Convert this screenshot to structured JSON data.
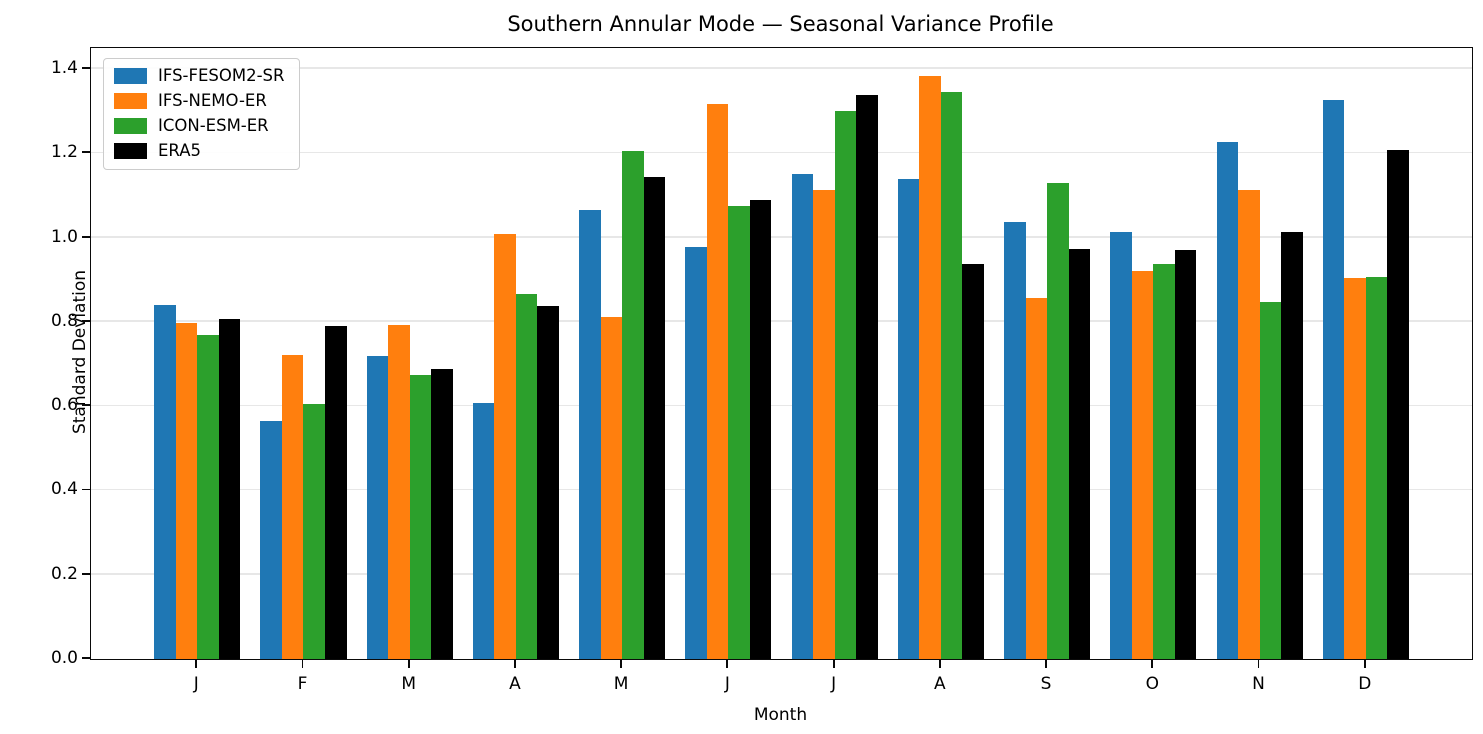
{
  "title": "Southern Annular Mode — Seasonal Variance Profile",
  "chart_data": {
    "type": "bar",
    "title": "Southern Annular Mode — Seasonal Variance Profile",
    "xlabel": "Month",
    "ylabel": "Standard Deviation",
    "categories": [
      "J",
      "F",
      "M",
      "A",
      "M",
      "J",
      "J",
      "A",
      "S",
      "O",
      "N",
      "D"
    ],
    "series": [
      {
        "name": "IFS-FESOM2-SR",
        "color": "#1f77b4",
        "values": [
          0.84,
          0.565,
          0.72,
          0.608,
          1.066,
          0.978,
          1.152,
          1.139,
          1.038,
          1.013,
          1.226,
          1.326
        ]
      },
      {
        "name": "IFS-NEMO-ER",
        "color": "#ff7f0e",
        "values": [
          0.797,
          0.721,
          0.793,
          1.008,
          0.811,
          1.317,
          1.112,
          1.383,
          0.857,
          0.921,
          1.114,
          0.904
        ]
      },
      {
        "name": "ICON-ESM-ER",
        "color": "#2ca02c",
        "values": [
          0.77,
          0.605,
          0.675,
          0.866,
          1.206,
          1.076,
          1.3,
          1.346,
          1.13,
          0.938,
          0.848,
          0.906
        ]
      },
      {
        "name": "ERA5",
        "color": "#000000",
        "values": [
          0.806,
          0.79,
          0.688,
          0.837,
          1.145,
          1.089,
          1.338,
          0.937,
          0.974,
          0.97,
          1.013,
          1.208
        ]
      }
    ],
    "ylim": [
      0,
      1.45
    ],
    "yticks": [
      0.0,
      0.2,
      0.4,
      0.6,
      0.8,
      1.0,
      1.2,
      1.4
    ],
    "grid": true,
    "legend_position": "upper left",
    "gridline_color": "#e7e7e7"
  }
}
